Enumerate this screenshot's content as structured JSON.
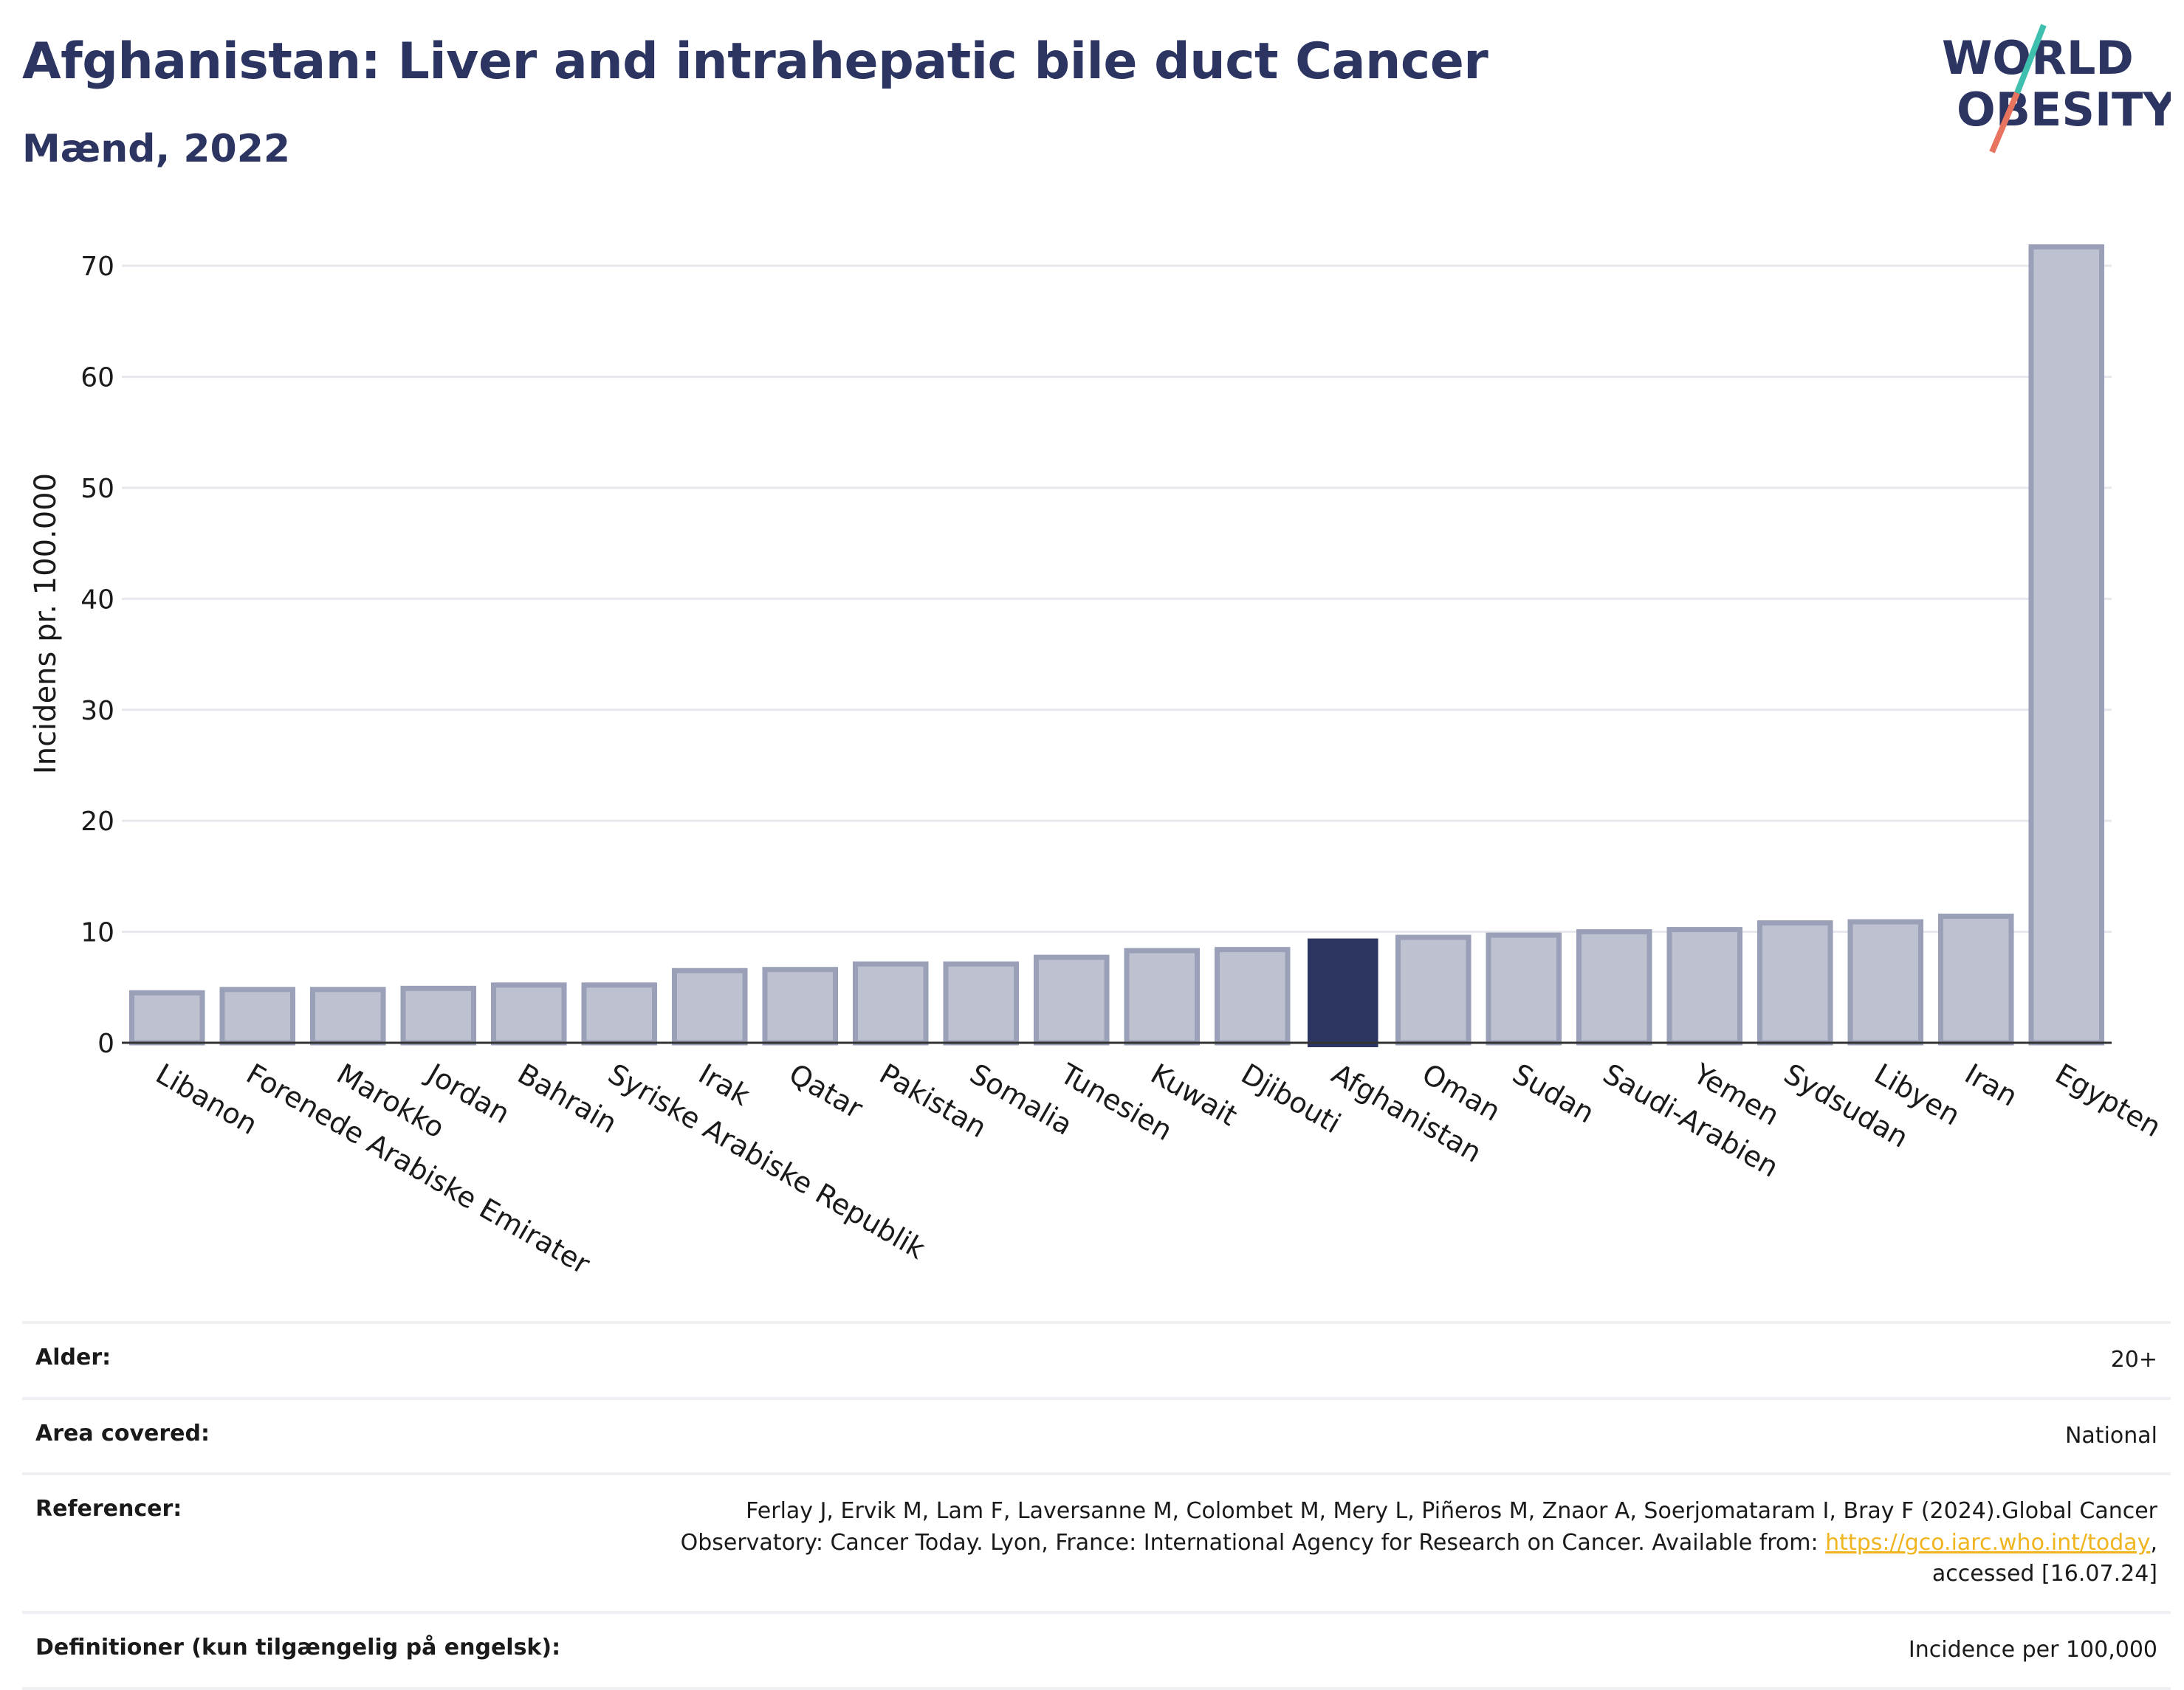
{
  "header": {
    "title": "Afghanistan: Liver and intrahepatic bile duct Cancer",
    "subtitle": "Mænd, 2022"
  },
  "logo": {
    "line1": "WORLD",
    "line2": "OBESITY",
    "slash_colors": [
      "#3fbfad",
      "#e8735f"
    ],
    "text_color": "#2c3561"
  },
  "chart_data": {
    "type": "bar",
    "categories": [
      "Libanon",
      "Forenede Arabiske Emirater",
      "Marokko",
      "Jordan",
      "Bahrain",
      "Syriske Arabiske Republik",
      "Irak",
      "Qatar",
      "Pakistan",
      "Somalia",
      "Tunesien",
      "Kuwait",
      "Djibouti",
      "Afghanistan",
      "Oman",
      "Sudan",
      "Saudi-Arabien",
      "Yemen",
      "Sydsudan",
      "Libyen",
      "Iran",
      "Egypten"
    ],
    "values": [
      4.5,
      4.8,
      4.8,
      4.9,
      5.2,
      5.2,
      6.5,
      6.6,
      7.1,
      7.1,
      7.7,
      8.3,
      8.4,
      9.4,
      9.5,
      9.7,
      10.0,
      10.2,
      10.8,
      10.9,
      11.4,
      71.7
    ],
    "highlight": "Afghanistan",
    "title": "",
    "xlabel": "",
    "ylabel": "Incidens pr. 100.000",
    "ylim": [
      0,
      74
    ],
    "yticks": [
      0,
      10,
      20,
      30,
      40,
      50,
      60,
      70
    ],
    "grid": true,
    "colors": {
      "bar": "#bec2d0",
      "bar_border": "#9aa0b8",
      "highlight": "#2c3561",
      "grid": "#e6e8ee",
      "axis": "#333333"
    }
  },
  "info": {
    "age_label": "Alder:",
    "age_value": "20+",
    "area_label": "Area covered:",
    "area_value": "National",
    "ref_label": "Referencer:",
    "ref_text_1": "Ferlay J, Ervik M, Lam F, Laversanne M, Colombet M, Mery L, Piñeros M, Znaor A, Soerjomataram I, Bray F (2024).Global Cancer",
    "ref_text_2": "Observatory: Cancer Today. Lyon, France: International Agency for Research on Cancer. Available from: ",
    "ref_link": "https://gco.iarc.who.int/today",
    "ref_text_3": ",",
    "ref_text_4": "accessed [16.07.24]",
    "def_label": "Definitioner (kun tilgængelig på engelsk):",
    "def_value": "Incidence per 100,000"
  }
}
